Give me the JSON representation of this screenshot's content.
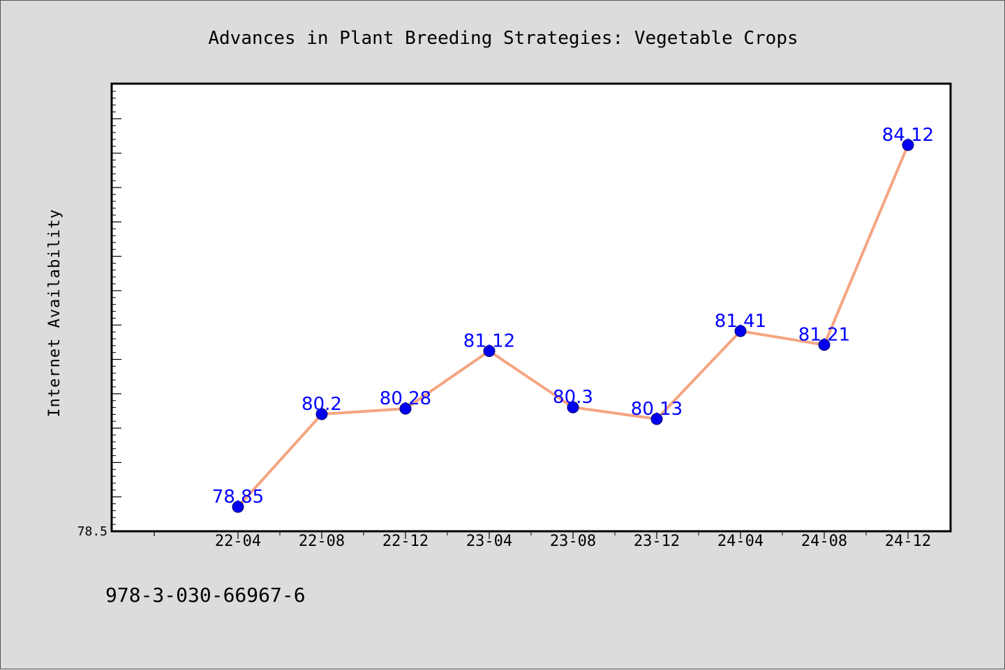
{
  "chart_data": {
    "type": "line",
    "title": "Advances in Plant Breeding Strategies: Vegetable Crops",
    "xlabel": "",
    "ylabel": "Internet Availability",
    "categories": [
      "22-04",
      "22-08",
      "22-12",
      "23-04",
      "23-08",
      "23-12",
      "24-04",
      "24-08",
      "24-12"
    ],
    "series": [
      {
        "values": [
          78.85,
          80.2,
          80.28,
          81.12,
          80.3,
          80.13,
          81.41,
          81.21,
          84.12
        ],
        "labels": [
          "78.85",
          "80.2",
          "80.28",
          "81.12",
          "80.3",
          "80.13",
          "81.41",
          "81.21",
          "84.12"
        ]
      }
    ],
    "ylim": [
      78.7,
      85.2
    ],
    "yticks_labeled": [
      "78.5"
    ],
    "grid": false,
    "legend": "none",
    "line_color": "#f4a582",
    "marker_color": "#0000ee",
    "label_color": "#0000ff"
  },
  "footer": {
    "isbn": "978-3-030-66967-6"
  }
}
